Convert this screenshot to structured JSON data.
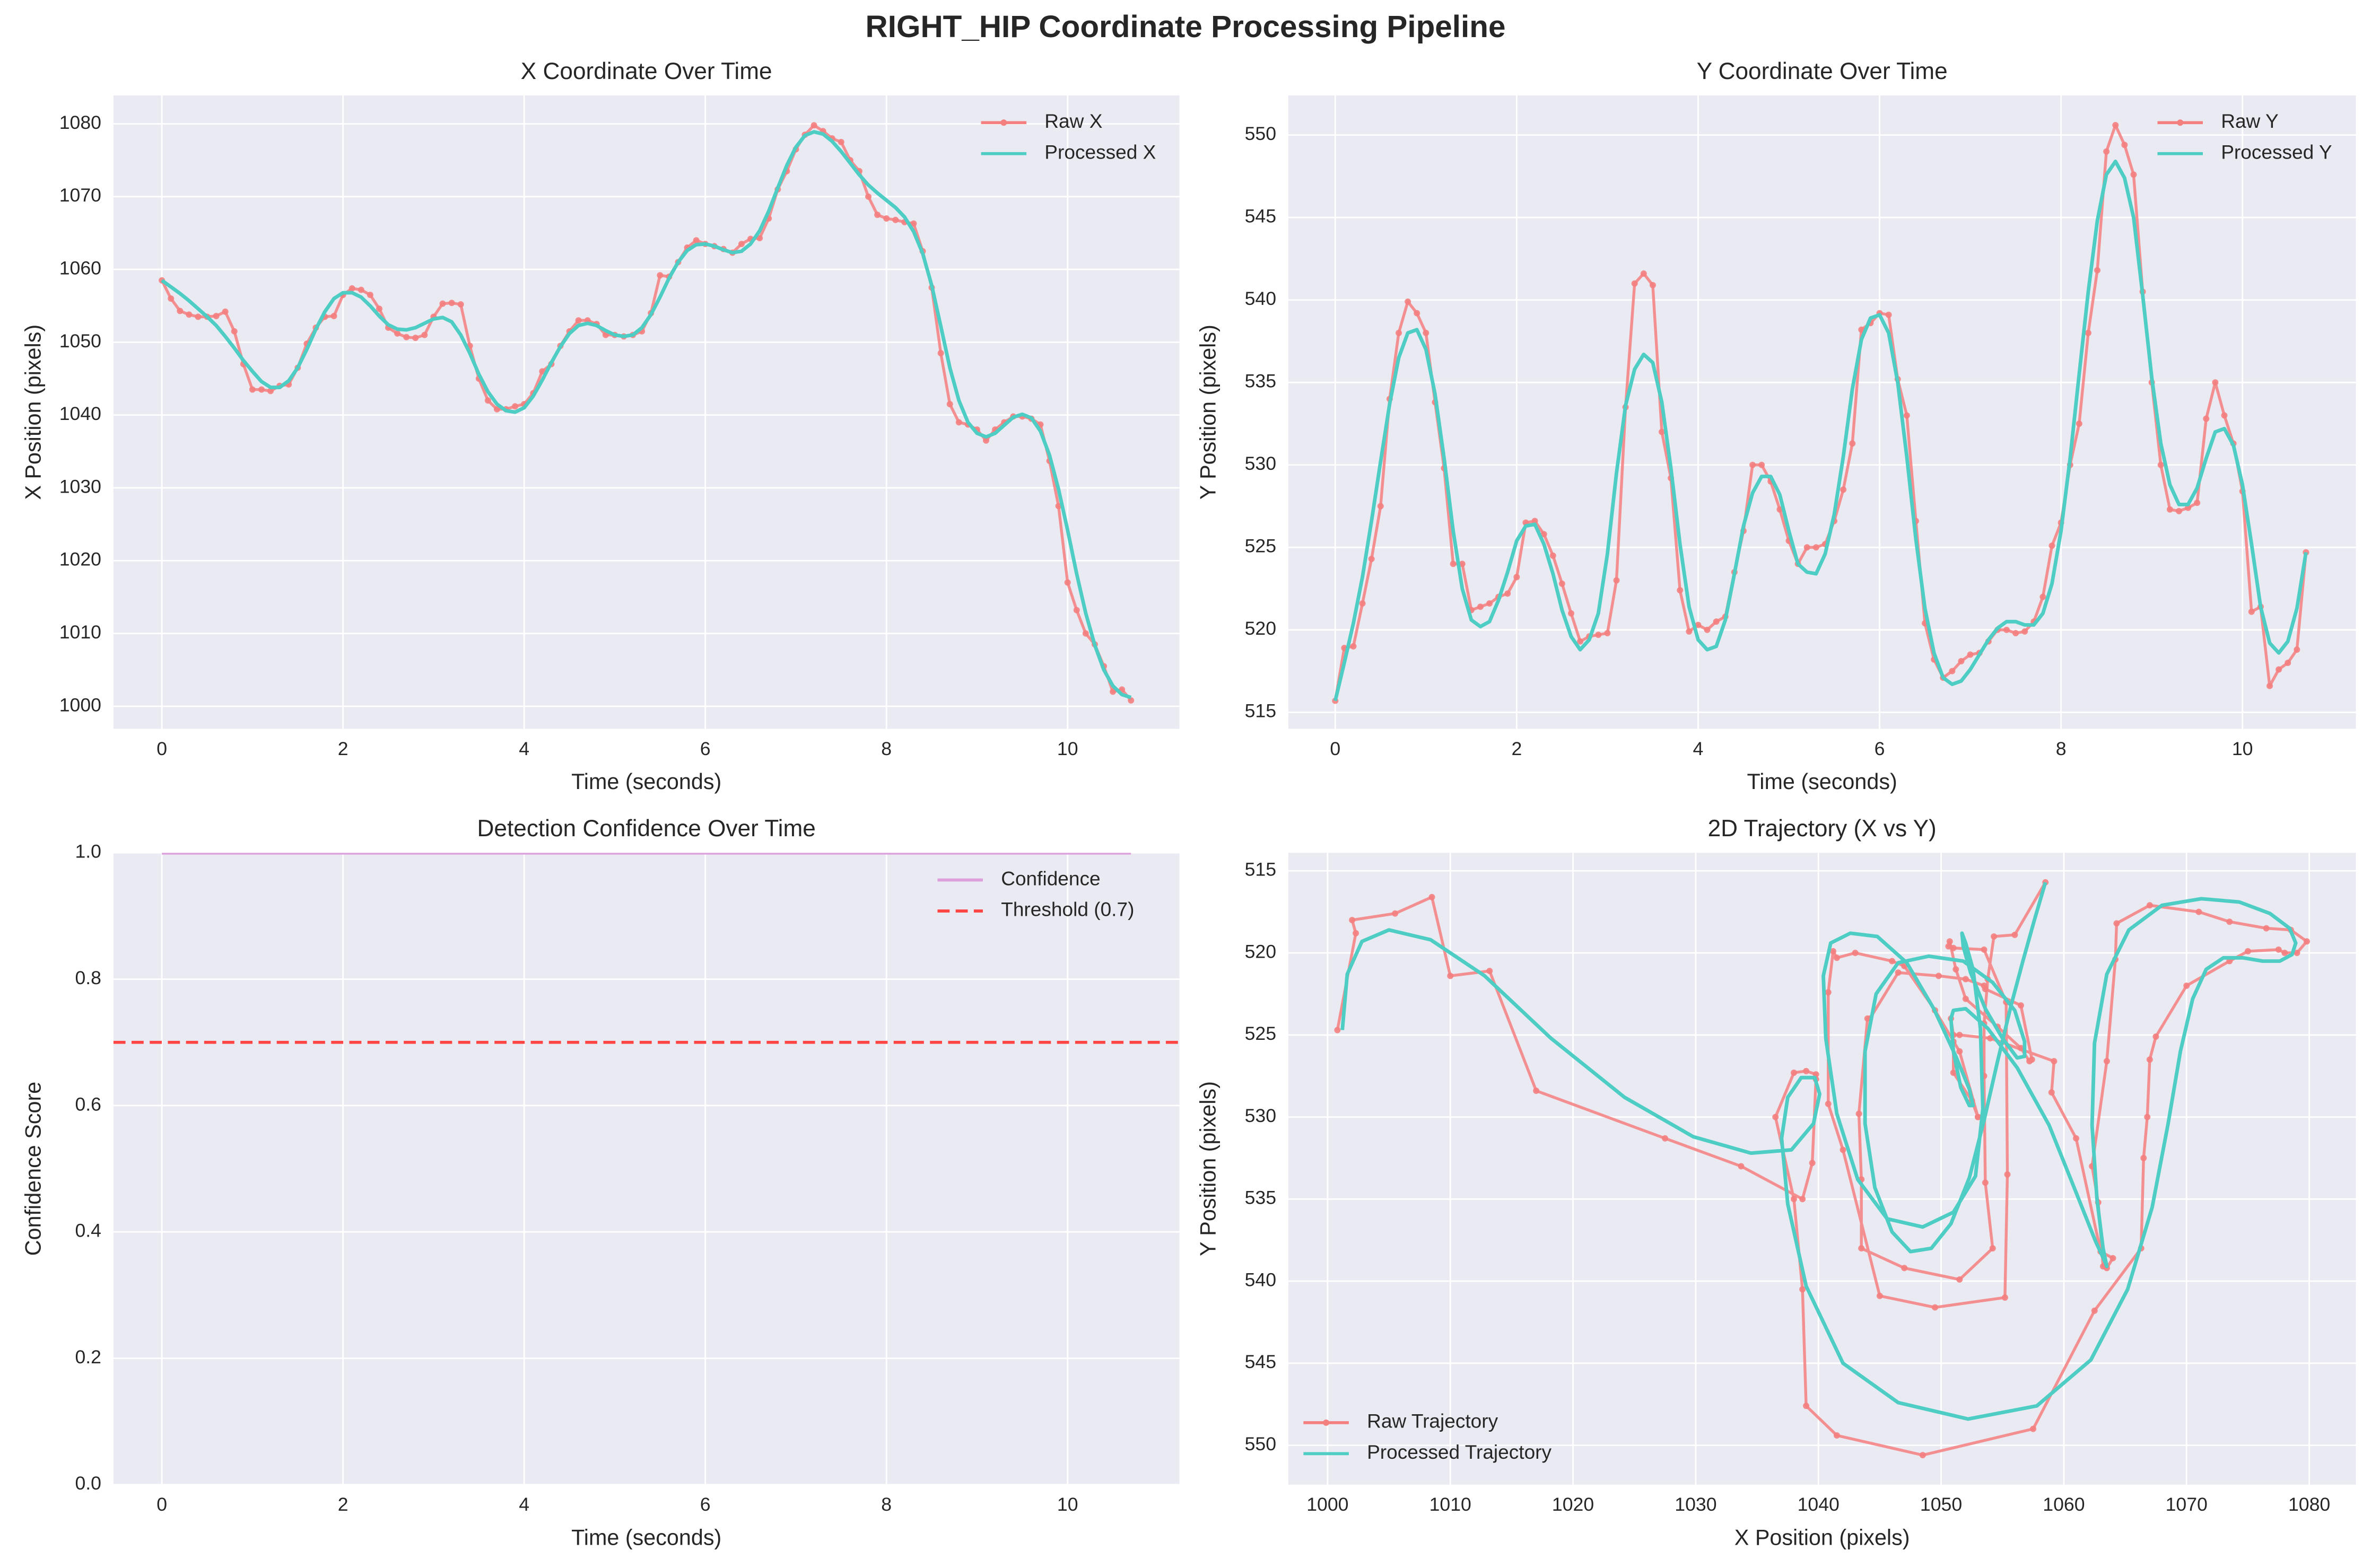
{
  "title": "RIGHT_HIP Coordinate Processing Pipeline",
  "chart_data": [
    {
      "type": "line",
      "title": "X Coordinate Over Time",
      "x_label": "Time (seconds)",
      "y_label": "X Position (pixels)",
      "x": [
        0,
        0.1,
        0.2,
        0.3,
        0.4,
        0.5,
        0.6,
        0.7,
        0.8,
        0.9,
        1,
        1.1,
        1.2,
        1.3,
        1.4,
        1.5,
        1.6,
        1.7,
        1.8,
        1.9,
        2,
        2.1,
        2.2,
        2.3,
        2.4,
        2.5,
        2.6,
        2.7,
        2.8,
        2.9,
        3,
        3.1,
        3.2,
        3.3,
        3.4,
        3.5,
        3.6,
        3.7,
        3.8,
        3.9,
        4,
        4.1,
        4.2,
        4.3,
        4.4,
        4.5,
        4.6,
        4.7,
        4.8,
        4.9,
        5,
        5.1,
        5.2,
        5.3,
        5.4,
        5.5,
        5.6,
        5.7,
        5.8,
        5.9,
        6,
        6.1,
        6.2,
        6.3,
        6.4,
        6.5,
        6.6,
        6.7,
        6.8,
        6.9,
        7,
        7.1,
        7.2,
        7.3,
        7.4,
        7.5,
        7.6,
        7.7,
        7.8,
        7.9,
        8,
        8.1,
        8.2,
        8.3,
        8.4,
        8.5,
        8.6,
        8.7,
        8.8,
        8.9,
        9,
        9.1,
        9.2,
        9.3,
        9.4,
        9.5,
        9.6,
        9.7,
        9.8,
        9.9,
        10,
        10.1,
        10.2,
        10.3,
        10.4,
        10.5,
        10.6,
        10.7
      ],
      "series": [
        {
          "name": "Raw X",
          "color": "#f47f7f",
          "marker": "o",
          "values": [
            1058.5,
            1056,
            1054.3,
            1053.8,
            1053.5,
            1053.5,
            1053.6,
            1054.2,
            1051.5,
            1047,
            1043.5,
            1043.5,
            1043.3,
            1044,
            1044.2,
            1046.5,
            1049.8,
            1052,
            1053.5,
            1053.6,
            1056.5,
            1057.4,
            1057.2,
            1056.5,
            1054.6,
            1052,
            1051.2,
            1050.7,
            1050.6,
            1051,
            1053.5,
            1055.3,
            1055.4,
            1055.2,
            1049.5,
            1045,
            1042,
            1040.8,
            1040.8,
            1041.2,
            1041.5,
            1043,
            1046,
            1047,
            1049.5,
            1051.5,
            1053,
            1053,
            1052.5,
            1051,
            1051,
            1050.8,
            1051,
            1051.5,
            1054,
            1059.2,
            1059,
            1061,
            1063,
            1064,
            1063.5,
            1063.2,
            1062.8,
            1062.3,
            1063.5,
            1064.2,
            1064.3,
            1067,
            1071,
            1073.5,
            1076.5,
            1078.5,
            1079.8,
            1079,
            1078,
            1077.5,
            1075,
            1073.5,
            1070,
            1067.5,
            1067,
            1066.8,
            1066.5,
            1066.3,
            1062.5,
            1057.5,
            1048.5,
            1041.5,
            1039,
            1038.7,
            1038,
            1036.5,
            1038,
            1039,
            1039.8,
            1039.8,
            1039.5,
            1038.7,
            1033.7,
            1027.5,
            1017,
            1013.2,
            1010,
            1008.5,
            1005.5,
            1002,
            1002.3,
            1000.8
          ]
        },
        {
          "name": "Processed X",
          "color": "#4ecdc4",
          "values": [
            1058.5,
            1057.6,
            1056.7,
            1055.7,
            1054.6,
            1053.5,
            1052.3,
            1050.8,
            1049.2,
            1047.5,
            1046,
            1044.6,
            1043.8,
            1043.8,
            1044.7,
            1046.5,
            1049,
            1051.8,
            1054.2,
            1056,
            1056.8,
            1056.8,
            1056.2,
            1055,
            1053.6,
            1052.4,
            1051.8,
            1051.7,
            1052,
            1052.6,
            1053.2,
            1053.4,
            1052.8,
            1051,
            1048.5,
            1045.6,
            1043.2,
            1041.5,
            1040.6,
            1040.4,
            1041,
            1042.6,
            1044.8,
            1047.2,
            1049.4,
            1051.2,
            1052.3,
            1052.6,
            1052.3,
            1051.6,
            1051,
            1050.8,
            1051,
            1052,
            1053.8,
            1056.2,
            1058.8,
            1061,
            1062.6,
            1063.4,
            1063.5,
            1063.2,
            1062.7,
            1062.3,
            1062.5,
            1063.5,
            1065.3,
            1068,
            1071.2,
            1074.3,
            1076.8,
            1078.4,
            1078.9,
            1078.6,
            1077.6,
            1076.2,
            1074.6,
            1073,
            1071.6,
            1070.5,
            1069.5,
            1068.5,
            1067.2,
            1065.2,
            1062.2,
            1057.8,
            1052.2,
            1046.5,
            1042,
            1039,
            1037.5,
            1037,
            1037.5,
            1038.6,
            1039.7,
            1040.1,
            1039.6,
            1037.8,
            1034.5,
            1029.8,
            1024.2,
            1018.2,
            1012.8,
            1008.4,
            1005,
            1002.8,
            1001.6,
            1001.2
          ]
        }
      ],
      "xlim": [
        -0.535,
        11.235
      ],
      "ylim": [
        996.9,
        1083.9
      ],
      "xticks": [
        0,
        2,
        4,
        6,
        8,
        10
      ],
      "yticks": [
        1000,
        1010,
        1020,
        1030,
        1040,
        1050,
        1060,
        1070,
        1080
      ],
      "grid": true,
      "legend": "upper right"
    },
    {
      "type": "line",
      "title": "Y Coordinate Over Time",
      "x_label": "Time (seconds)",
      "y_label": "Y Position (pixels)",
      "x": [
        0,
        0.1,
        0.2,
        0.3,
        0.4,
        0.5,
        0.6,
        0.7,
        0.8,
        0.9,
        1,
        1.1,
        1.2,
        1.3,
        1.4,
        1.5,
        1.6,
        1.7,
        1.8,
        1.9,
        2,
        2.1,
        2.2,
        2.3,
        2.4,
        2.5,
        2.6,
        2.7,
        2.8,
        2.9,
        3,
        3.1,
        3.2,
        3.3,
        3.4,
        3.5,
        3.6,
        3.7,
        3.8,
        3.9,
        4,
        4.1,
        4.2,
        4.3,
        4.4,
        4.5,
        4.6,
        4.7,
        4.8,
        4.9,
        5,
        5.1,
        5.2,
        5.3,
        5.4,
        5.5,
        5.6,
        5.7,
        5.8,
        5.9,
        6,
        6.1,
        6.2,
        6.3,
        6.4,
        6.5,
        6.6,
        6.7,
        6.8,
        6.9,
        7,
        7.1,
        7.2,
        7.3,
        7.4,
        7.5,
        7.6,
        7.7,
        7.8,
        7.9,
        8,
        8.1,
        8.2,
        8.3,
        8.4,
        8.5,
        8.6,
        8.7,
        8.8,
        8.9,
        9,
        9.1,
        9.2,
        9.3,
        9.4,
        9.5,
        9.6,
        9.7,
        9.8,
        9.9,
        10,
        10.1,
        10.2,
        10.3,
        10.4,
        10.5,
        10.6,
        10.7
      ],
      "series": [
        {
          "name": "Raw Y",
          "color": "#f47f7f",
          "marker": "o",
          "values": [
            515.7,
            518.9,
            519,
            521.6,
            524.3,
            527.5,
            534,
            538,
            539.9,
            539.2,
            538,
            533.8,
            529.8,
            524,
            524,
            521.2,
            521.4,
            521.6,
            522,
            522.2,
            523.2,
            526.5,
            526.6,
            525.8,
            524.5,
            522.8,
            521,
            519.3,
            519.6,
            519.7,
            519.8,
            523,
            533.5,
            541,
            541.6,
            540.9,
            532,
            529.2,
            522.4,
            519.9,
            520.3,
            520,
            520.5,
            520.8,
            523.5,
            526,
            530,
            530,
            529,
            527.3,
            525.4,
            524,
            525,
            525,
            525.2,
            526.6,
            528.5,
            531.3,
            538.2,
            538.6,
            539.2,
            539.1,
            535.2,
            533,
            526.6,
            520.4,
            518.2,
            517.1,
            517.5,
            518.1,
            518.5,
            518.6,
            519.3,
            520,
            520,
            519.8,
            519.9,
            520.5,
            522,
            525.1,
            526.5,
            530,
            532.5,
            538,
            541.8,
            549,
            550.6,
            549.4,
            547.6,
            540.5,
            535,
            530,
            527.3,
            527.2,
            527.4,
            527.7,
            532.8,
            535,
            533,
            531.3,
            528.4,
            521.1,
            521.4,
            516.6,
            517.6,
            518,
            518.8,
            524.7
          ]
        },
        {
          "name": "Processed Y",
          "color": "#4ecdc4",
          "values": [
            515.7,
            518,
            520.4,
            523.2,
            526.6,
            530.2,
            533.7,
            536.5,
            538,
            538.2,
            537,
            534.3,
            530.4,
            526,
            522.5,
            520.6,
            520.2,
            520.5,
            521.8,
            523.5,
            525.4,
            526.3,
            526.4,
            525.2,
            523.4,
            521.2,
            519.6,
            518.8,
            519.4,
            521,
            524.6,
            529.5,
            533.6,
            535.8,
            536.7,
            536.2,
            533.8,
            529.8,
            525.2,
            521.4,
            519.4,
            518.8,
            519,
            520.6,
            523.4,
            526.3,
            528.3,
            529.3,
            529.3,
            528.2,
            526,
            524,
            523.5,
            523.4,
            524.6,
            527,
            530.5,
            534.6,
            537.6,
            538.9,
            539.1,
            538,
            535,
            530.5,
            525.5,
            521.3,
            518.6,
            517.1,
            516.7,
            516.9,
            517.6,
            518.5,
            519.4,
            520.1,
            520.5,
            520.5,
            520.3,
            520.3,
            521,
            522.8,
            526,
            530.4,
            535.5,
            540.5,
            544.8,
            547.6,
            548.4,
            547.4,
            545,
            540.3,
            535.3,
            531.3,
            528.8,
            527.6,
            527.6,
            528.6,
            530.4,
            532,
            532.2,
            531.2,
            528.8,
            525.2,
            521.4,
            519.2,
            518.6,
            519.3,
            521.3,
            524.7
          ]
        }
      ],
      "xlim": [
        -0.517,
        11.25
      ],
      "ylim": [
        514,
        552.4
      ],
      "xticks": [
        0,
        2,
        4,
        6,
        8,
        10
      ],
      "yticks": [
        515,
        520,
        525,
        530,
        535,
        540,
        545,
        550
      ],
      "grid": true,
      "legend": "upper right"
    },
    {
      "type": "line",
      "title": "Detection Confidence Over Time",
      "x_label": "Time (seconds)",
      "y_label": "Confidence Score",
      "x": [
        0,
        1,
        2,
        3,
        4,
        5,
        6,
        7,
        8,
        9,
        10,
        10.7
      ],
      "series": [
        {
          "name": "Confidence",
          "color": "#dda0dd",
          "values": [
            1,
            1,
            1,
            1,
            1,
            1,
            1,
            1,
            1,
            1,
            1,
            1
          ]
        }
      ],
      "threshold": {
        "name": "Threshold (0.7)",
        "value": 0.7,
        "color": "#ff4444"
      },
      "xlim": [
        -0.535,
        11.235
      ],
      "ylim": [
        0,
        1
      ],
      "xticks": [
        0,
        2,
        4,
        6,
        8,
        10
      ],
      "yticks": [
        {
          "value": 0,
          "label": "0.0"
        },
        0.2,
        0.4,
        0.6,
        0.8,
        {
          "value": 1,
          "label": "1.0"
        }
      ],
      "grid": true,
      "legend": "upper right"
    },
    {
      "type": "trajectory",
      "title": "2D Trajectory (X vs Y)",
      "x_label": "X Position (pixels)",
      "y_label": "Y Position (pixels)",
      "series": [
        {
          "name": "Raw Trajectory",
          "color": "#f47f7f",
          "marker": "o"
        },
        {
          "name": "Processed Trajectory",
          "color": "#4ecdc4"
        }
      ],
      "xlim": [
        996.8,
        1083.8
      ],
      "ylim": [
        552.4,
        513.9
      ],
      "xticks": [
        1000,
        1010,
        1020,
        1030,
        1040,
        1050,
        1060,
        1070,
        1080
      ],
      "yticks": [
        515,
        520,
        525,
        530,
        535,
        540,
        545,
        550
      ],
      "grid": true,
      "legend": "lower left"
    }
  ]
}
